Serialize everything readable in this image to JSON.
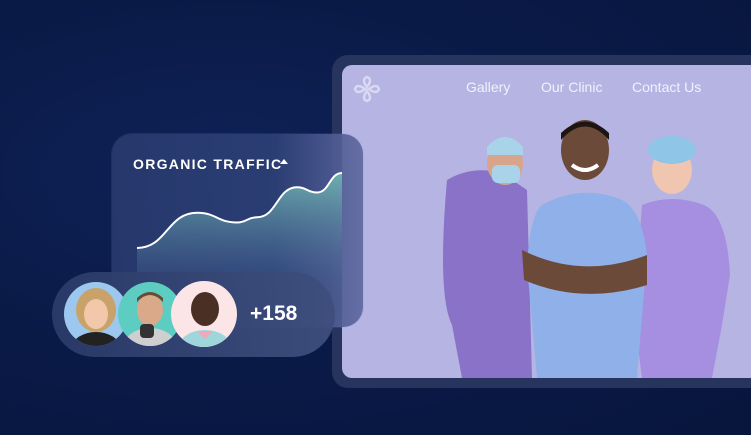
{
  "website": {
    "logo": "clover-heart-logo",
    "nav": [
      {
        "label": "Gallery"
      },
      {
        "label": "Our Clinic"
      },
      {
        "label": "Contact Us"
      }
    ],
    "background_color": "#b6b4e3"
  },
  "traffic_card": {
    "title": "ORGANIC TRAFFIC",
    "trend_icon": "triangle-up-icon",
    "accent_color": "#6fb3b0"
  },
  "chart_data": {
    "type": "area",
    "x": [
      0,
      1,
      2,
      3,
      4,
      5,
      6
    ],
    "values": [
      0,
      47,
      34,
      41,
      81,
      74,
      100
    ],
    "xlabel": "",
    "ylabel": "",
    "grid": false
  },
  "users": {
    "avatars": [
      "avatar-woman-blonde",
      "avatar-man-smiling",
      "avatar-man-older"
    ],
    "count_label": "+158"
  }
}
